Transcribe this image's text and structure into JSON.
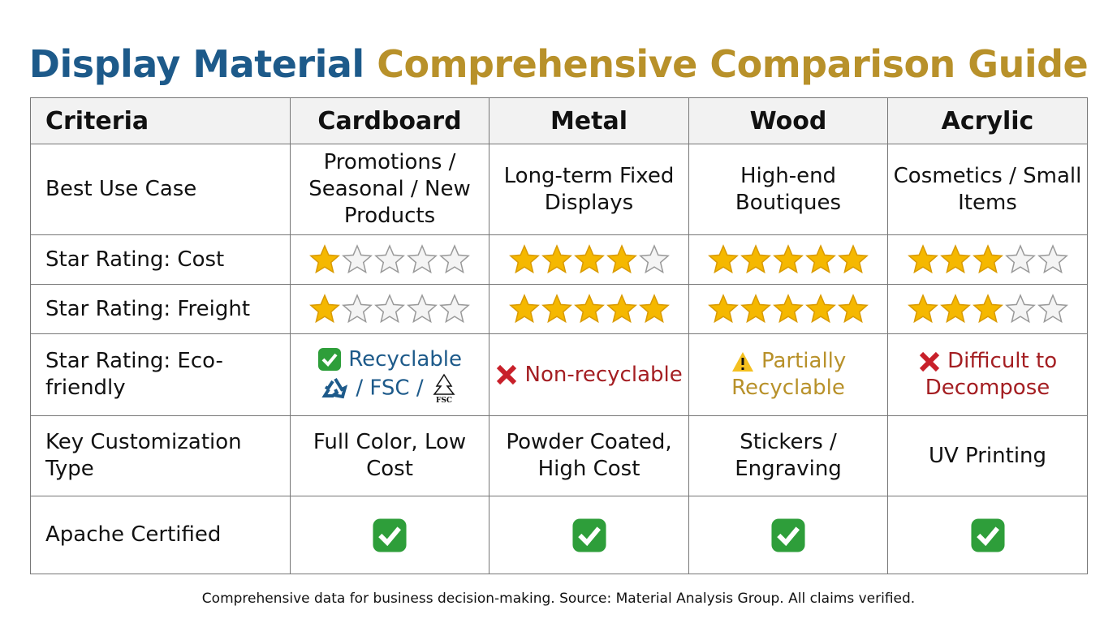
{
  "title": {
    "part1": "Display Material",
    "part2": "Comprehensive Comparison Guide"
  },
  "table": {
    "columns": [
      "Criteria",
      "Cardboard",
      "Metal",
      "Wood",
      "Acrylic"
    ],
    "use_case": {
      "label": "Best Use Case",
      "cells": [
        "Promotions / Seasonal / New Products",
        "Long-term Fixed Displays",
        "High-end Boutiques",
        "Cosmetics / Small Items"
      ]
    },
    "out_of": 5,
    "cost": {
      "label": "Star Rating: Cost",
      "ratings": [
        1,
        4,
        5,
        3
      ]
    },
    "freight": {
      "label": "Star Rating: Freight",
      "ratings": [
        1,
        5,
        5,
        3
      ]
    },
    "eco": {
      "label": "Star Rating: Eco-friendly",
      "cells": [
        [
          "Recyclable",
          "/ FSC /",
          "FSC"
        ],
        [
          "Non-recyclable"
        ],
        [
          "Partially Recyclable"
        ],
        [
          "Difficult to Decompose"
        ]
      ]
    },
    "customization": {
      "label": "Key Customization Type",
      "cells": [
        "Full Color, Low Cost",
        "Powder Coated, High Cost",
        "Stickers / Engraving",
        "UV Printing"
      ]
    },
    "certified": {
      "label": "Apache Certified"
    }
  },
  "footer": "Comprehensive data for business decision-making. Source: Material Analysis Group. All claims verified."
}
